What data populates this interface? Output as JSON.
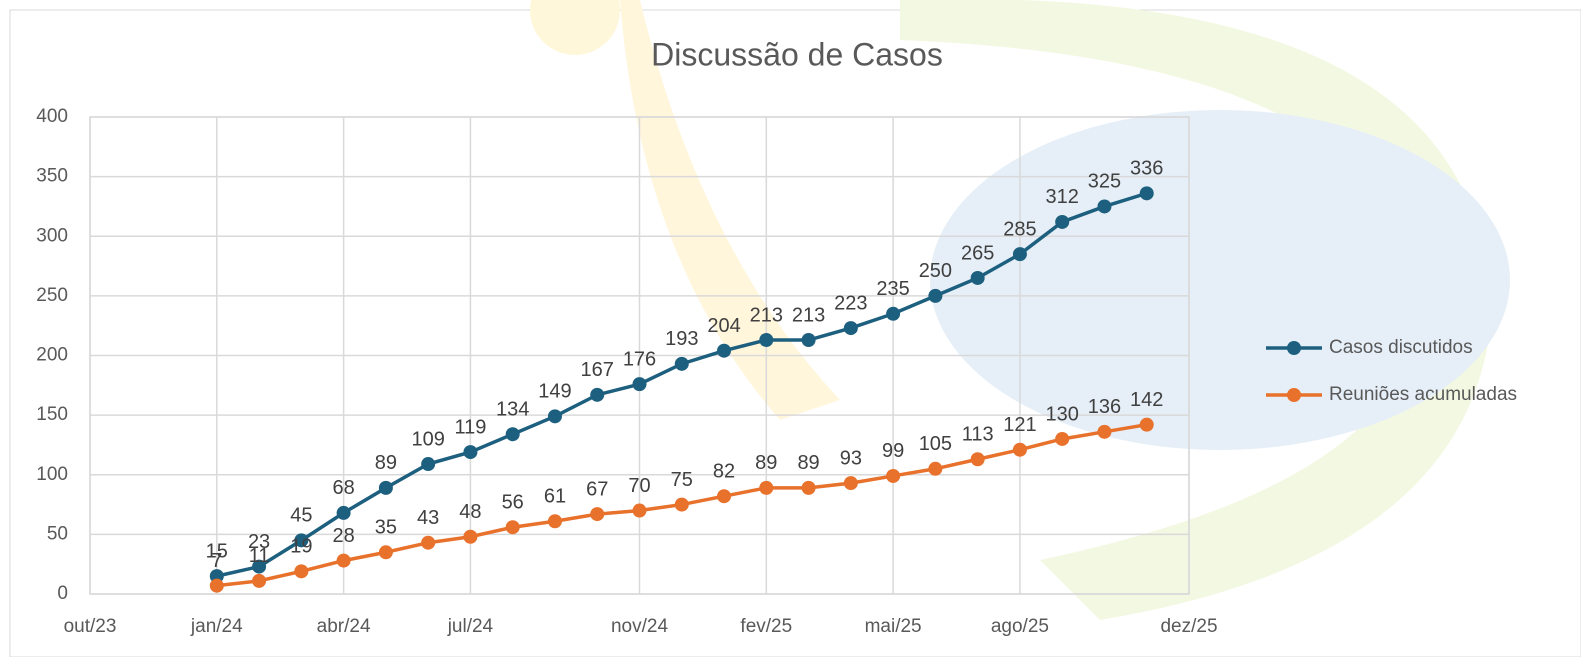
{
  "chart_data": {
    "type": "line",
    "title": "Discussão de Casos",
    "x": [
      "2024-01",
      "2024-02",
      "2024-03",
      "2024-04",
      "2024-05",
      "2024-06",
      "2024-07",
      "2024-08",
      "2024-09",
      "2024-10",
      "2024-11",
      "2024-12",
      "2025-01",
      "2025-02",
      "2025-03",
      "2025-04",
      "2025-05",
      "2025-06",
      "2025-07",
      "2025-08",
      "2025-09",
      "2025-10",
      "2025-11"
    ],
    "series": [
      {
        "name": "Casos discutidos",
        "color": "#1d5f7e",
        "values": [
          15,
          23,
          45,
          68,
          89,
          109,
          119,
          134,
          149,
          167,
          176,
          193,
          204,
          213,
          213,
          223,
          235,
          250,
          265,
          285,
          312,
          325,
          336
        ]
      },
      {
        "name": "Reuniões acumuladas",
        "color": "#e8712b",
        "values": [
          7,
          11,
          19,
          28,
          35,
          43,
          48,
          56,
          61,
          67,
          70,
          75,
          82,
          89,
          89,
          93,
          99,
          105,
          113,
          121,
          130,
          136,
          142
        ]
      }
    ],
    "xlim": [
      "2023-10",
      "2025-12"
    ],
    "xticks": [
      {
        "value": "2023-10",
        "label": "out/23"
      },
      {
        "value": "2024-01",
        "label": "jan/24"
      },
      {
        "value": "2024-04",
        "label": "abr/24"
      },
      {
        "value": "2024-07",
        "label": "jul/24"
      },
      {
        "value": "2024-11",
        "label": "nov/24"
      },
      {
        "value": "2025-02",
        "label": "fev/25"
      },
      {
        "value": "2025-05",
        "label": "mai/25"
      },
      {
        "value": "2025-08",
        "label": "ago/25"
      },
      {
        "value": "2025-12",
        "label": "dez/25"
      }
    ],
    "ylim": [
      0,
      400
    ],
    "yticks": [
      0,
      50,
      100,
      150,
      200,
      250,
      300,
      350,
      400
    ],
    "grid": true,
    "legend": "right",
    "data_labels": true
  }
}
